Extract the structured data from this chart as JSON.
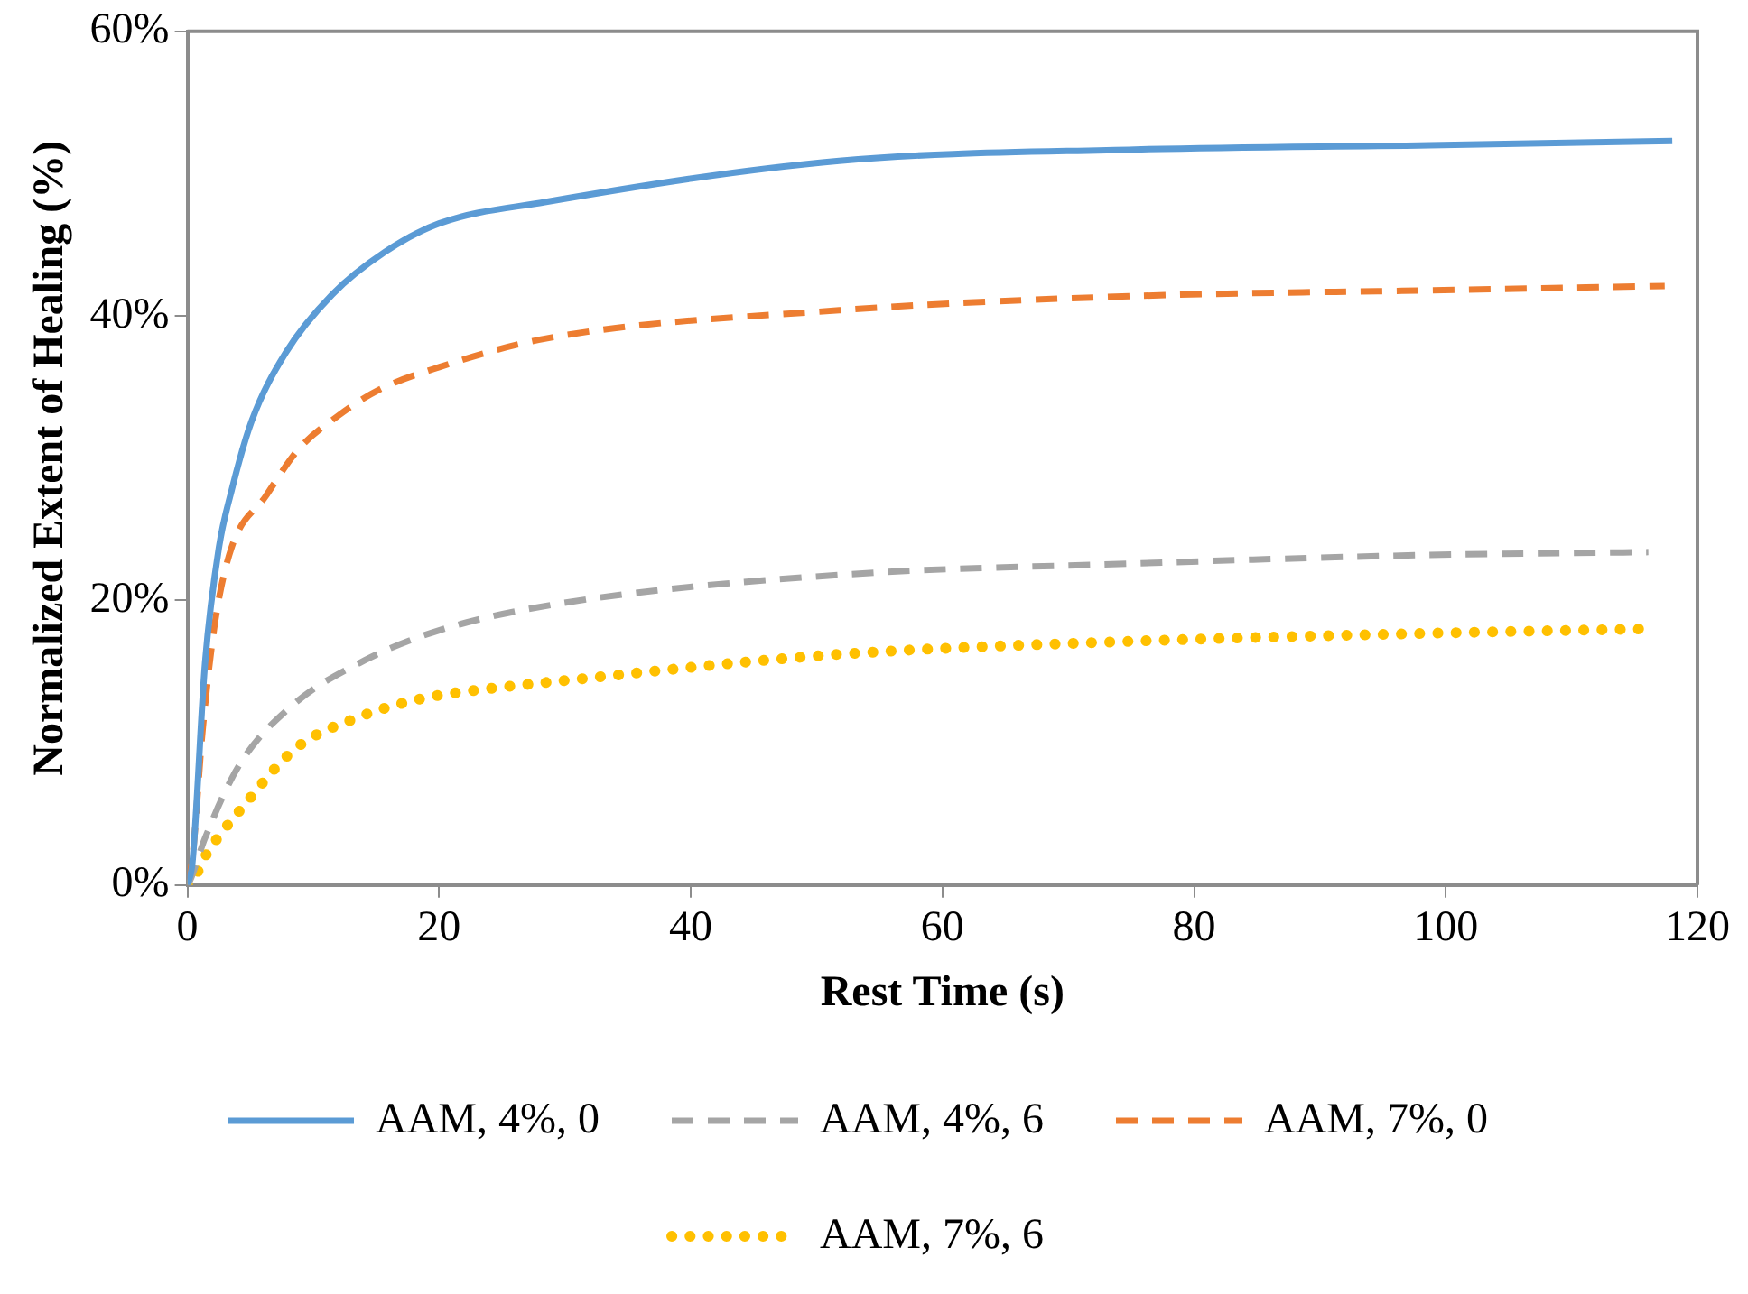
{
  "chart_data": {
    "type": "line",
    "xlabel": "Rest Time (s)",
    "ylabel": "Normalized Extent of Healing (%)",
    "xlim": [
      0,
      120
    ],
    "xticks": [
      0,
      20,
      40,
      60,
      80,
      100,
      120
    ],
    "ylim": [
      0,
      60
    ],
    "yticks": [
      {
        "value": 0,
        "label": "0%"
      },
      {
        "value": 20,
        "label": "20%"
      },
      {
        "value": 40,
        "label": "40%"
      },
      {
        "value": 60,
        "label": "60%"
      }
    ],
    "grid": false,
    "legend": "bottom",
    "marker": "none",
    "series": [
      {
        "name": "AAM, 4%, 0",
        "color": "#5b9bd5",
        "line_style": "solid",
        "x": [
          0,
          0.4,
          1.4,
          2.5,
          3.5,
          5.1,
          7.8,
          11.5,
          15.7,
          20,
          28.4,
          51.8,
          75.3,
          98.7,
          118
        ],
        "values": [
          0,
          1.6,
          15.6,
          23.7,
          27.7,
          32.6,
          37.4,
          41.5,
          44.5,
          46.5,
          48.0,
          50.9,
          51.7,
          52.0,
          52.3
        ]
      },
      {
        "name": "AAM, 4%, 6",
        "color": "#a5a5a5",
        "line_style": "dashed",
        "x": [
          0,
          0.2,
          1.4,
          4.1,
          8.3,
          14.1,
          20,
          29.7,
          51.8,
          75.3,
          98.7,
          116.1
        ],
        "values": [
          0,
          0.3,
          3.3,
          8.4,
          12.6,
          15.8,
          17.9,
          19.8,
          21.8,
          22.6,
          23.2,
          23.4
        ]
      },
      {
        "name": "AAM, 7%, 0",
        "color": "#ed7d31",
        "line_style": "dashed",
        "x": [
          0,
          0.4,
          1.2,
          2.2,
          3.5,
          6.2,
          8.8,
          12,
          15.2,
          20,
          28.4,
          51.8,
          75.3,
          98.7,
          117.4
        ],
        "values": [
          0,
          1.9,
          10.8,
          18.5,
          23.7,
          27.3,
          30.6,
          33.0,
          34.8,
          36.4,
          38.4,
          40.4,
          41.4,
          41.8,
          42.1
        ]
      },
      {
        "name": "AAM, 7%, 6",
        "color": "#ffc000",
        "line_style": "dotted",
        "x": [
          0,
          0.3,
          1.4,
          4.5,
          8.6,
          13.3,
          18.6,
          23.9,
          28.1,
          51.5,
          73.9,
          99,
          115.7
        ],
        "values": [
          0,
          0.1,
          2.0,
          5.6,
          9.6,
          11.7,
          13.1,
          13.8,
          14.2,
          16.2,
          17.1,
          17.7,
          18.0
        ]
      }
    ]
  }
}
